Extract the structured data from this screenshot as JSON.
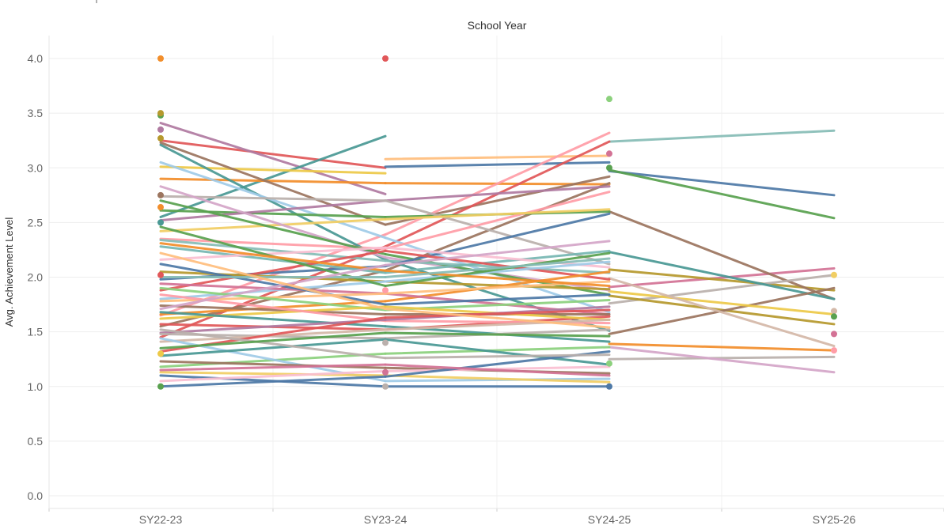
{
  "chart_data": {
    "type": "line",
    "title": "",
    "xlabel": "School Year",
    "ylabel": "Avg. Achievement Level",
    "categories": [
      "SY22-23",
      "SY23-24",
      "SY24-25",
      "SY25-26"
    ],
    "y_ticks": [
      "0.0",
      "0.5",
      "1.0",
      "1.5",
      "2.0",
      "2.5",
      "3.0",
      "3.5",
      "4.0"
    ],
    "ylim": [
      0,
      4.05
    ],
    "grid": true,
    "legend": "none",
    "palette": [
      "#4e79a7",
      "#f28e2b",
      "#e15759",
      "#76b7b2",
      "#59a14f",
      "#edc948",
      "#b07aa1",
      "#ff9da7",
      "#9c755f",
      "#bab0ac",
      "#a0cbe8",
      "#ffbe7d",
      "#8cd17d",
      "#b6992d",
      "#499894",
      "#86bcb6",
      "#d37295",
      "#fabfd2",
      "#d4a6c8",
      "#f1ce63"
    ],
    "series": [
      {
        "color": "#86bcb6",
        "values": [
          null,
          null,
          3.24,
          3.34
        ]
      },
      {
        "color": "#4e79a7",
        "values": [
          null,
          null,
          2.97,
          2.75
        ]
      },
      {
        "color": "#59a14f",
        "values": [
          null,
          null,
          2.98,
          2.54
        ]
      },
      {
        "color": "#d37295",
        "values": [
          null,
          null,
          1.91,
          2.08
        ]
      },
      {
        "color": "#b6992d",
        "values": [
          null,
          null,
          2.07,
          1.88
        ]
      },
      {
        "color": "#9c755f",
        "values": [
          null,
          null,
          2.6,
          1.8
        ]
      },
      {
        "color": "#bab0ac",
        "values": [
          null,
          null,
          1.76,
          2.02
        ]
      },
      {
        "color": "#499894",
        "values": [
          null,
          null,
          2.23,
          1.8
        ]
      },
      {
        "color": "#b6992d",
        "values": [
          null,
          null,
          1.83,
          1.57
        ]
      },
      {
        "color": "#9c755f",
        "values": [
          null,
          null,
          1.48,
          1.9
        ]
      },
      {
        "color": "#edc948",
        "values": [
          null,
          null,
          1.87,
          1.66
        ]
      },
      {
        "color": "#f28e2b",
        "values": [
          null,
          null,
          1.39,
          1.33
        ]
      },
      {
        "color": "#bab0ac",
        "values": [
          null,
          null,
          1.25,
          1.27
        ]
      },
      {
        "color": "#d4a6c8",
        "values": [
          null,
          null,
          1.36,
          1.13
        ]
      },
      {
        "color": "#d4b8a8",
        "values": [
          null,
          null,
          1.99,
          1.37
        ]
      },
      {
        "color": "#e15759",
        "values": [
          3.25,
          3.0,
          null,
          null
        ]
      },
      {
        "color": "#b07aa1",
        "values": [
          3.41,
          2.76,
          null,
          null
        ]
      },
      {
        "color": "#4e79a7",
        "values": [
          null,
          3.01,
          3.05,
          null
        ]
      },
      {
        "color": "#ffbe7d",
        "values": [
          null,
          3.08,
          3.11,
          null
        ]
      },
      {
        "color": "#499894",
        "values": [
          2.55,
          3.29,
          null,
          null
        ]
      },
      {
        "color": "#edc948",
        "values": [
          3.01,
          2.95,
          null,
          null
        ]
      },
      {
        "color": "#f28e2b",
        "values": [
          2.9,
          2.86,
          2.85,
          null
        ]
      },
      {
        "color": "#9c755f",
        "values": [
          3.23,
          2.48,
          2.92,
          null
        ]
      },
      {
        "color": "#ff9da7",
        "values": [
          1.65,
          2.39,
          3.32,
          null
        ]
      },
      {
        "color": "#e15759",
        "values": [
          1.45,
          2.28,
          3.24,
          null
        ]
      },
      {
        "color": "#9c755f",
        "values": [
          1.55,
          2.06,
          2.86,
          null
        ]
      },
      {
        "color": "#499894",
        "values": [
          3.21,
          2.16,
          1.51,
          null
        ]
      },
      {
        "color": "#a0cbe8",
        "values": [
          3.05,
          2.36,
          1.68,
          null
        ]
      },
      {
        "color": "#59a14f",
        "values": [
          2.61,
          2.55,
          2.6,
          null
        ]
      },
      {
        "color": "#b07aa1",
        "values": [
          2.52,
          2.7,
          2.83,
          null
        ]
      },
      {
        "color": "#bab0ac",
        "values": [
          2.74,
          2.7,
          2.12,
          null
        ]
      },
      {
        "color": "#ff9da7",
        "values": [
          2.35,
          2.26,
          2.78,
          null
        ]
      },
      {
        "color": "#f1ce63",
        "values": [
          2.42,
          2.53,
          2.62,
          null
        ]
      },
      {
        "color": "#d4a6c8",
        "values": [
          2.83,
          2.18,
          1.88,
          null
        ]
      },
      {
        "color": "#59a14f",
        "values": [
          2.7,
          2.21,
          1.84,
          null
        ]
      },
      {
        "color": "#86bcb6",
        "values": [
          2.34,
          2.15,
          2.04,
          null
        ]
      },
      {
        "color": "#4e79a7",
        "values": [
          1.98,
          2.1,
          2.58,
          null
        ]
      },
      {
        "color": "#76b7b2",
        "values": [
          2.28,
          2.04,
          2.24,
          null
        ]
      },
      {
        "color": "#fabfd2",
        "values": [
          2.16,
          2.27,
          2.09,
          null
        ]
      },
      {
        "color": "#e15759",
        "values": [
          1.88,
          2.24,
          1.98,
          null
        ]
      },
      {
        "color": "#b6992d",
        "values": [
          2.05,
          1.96,
          1.89,
          null
        ]
      },
      {
        "color": "#a0cbe8",
        "values": [
          1.8,
          1.96,
          2.14,
          null
        ]
      },
      {
        "color": "#f28e2b",
        "values": [
          1.66,
          1.78,
          2.05,
          null
        ]
      },
      {
        "color": "#59a14f",
        "values": [
          2.46,
          1.92,
          2.22,
          null
        ]
      },
      {
        "color": "#d37295",
        "values": [
          1.94,
          1.85,
          1.66,
          null
        ]
      },
      {
        "color": "#4e79a7",
        "values": [
          2.12,
          1.75,
          1.84,
          null
        ]
      },
      {
        "color": "#ffbe7d",
        "values": [
          1.78,
          1.85,
          1.96,
          null
        ]
      },
      {
        "color": "#8cd17d",
        "values": [
          1.9,
          1.7,
          1.79,
          null
        ]
      },
      {
        "color": "#9c755f",
        "values": [
          1.74,
          1.66,
          1.66,
          null
        ]
      },
      {
        "color": "#e15759",
        "values": [
          1.57,
          1.52,
          1.64,
          null
        ]
      },
      {
        "color": "#edc948",
        "values": [
          1.62,
          1.73,
          1.61,
          null
        ]
      },
      {
        "color": "#ff9da7",
        "values": [
          1.84,
          1.6,
          1.58,
          null
        ]
      },
      {
        "color": "#499894",
        "values": [
          1.68,
          1.55,
          1.41,
          null
        ]
      },
      {
        "color": "#b07aa1",
        "values": [
          1.49,
          1.61,
          1.73,
          null
        ]
      },
      {
        "color": "#bab0ac",
        "values": [
          1.48,
          1.44,
          1.52,
          null
        ]
      },
      {
        "color": "#d4b8a8",
        "values": [
          1.41,
          1.52,
          1.61,
          null
        ]
      },
      {
        "color": "#e15759",
        "values": [
          1.32,
          1.63,
          1.7,
          null
        ]
      },
      {
        "color": "#8cd17d",
        "values": [
          1.18,
          1.3,
          1.36,
          null
        ]
      },
      {
        "color": "#a0cbe8",
        "values": [
          1.44,
          1.05,
          1.07,
          null
        ]
      },
      {
        "color": "#4e79a7",
        "values": [
          1.1,
          1.0,
          1.0,
          null
        ]
      },
      {
        "color": "#9c755f",
        "values": [
          1.23,
          1.17,
          1.12,
          null
        ]
      },
      {
        "color": "#f1ce63",
        "values": [
          1.13,
          1.1,
          1.04,
          null
        ]
      },
      {
        "color": "#499894",
        "values": [
          1.28,
          1.43,
          1.2,
          null
        ]
      },
      {
        "color": "#fabfd2",
        "values": [
          1.05,
          1.14,
          1.18,
          null
        ]
      },
      {
        "color": "#4e79a7",
        "values": [
          1.0,
          1.09,
          1.32,
          null
        ]
      },
      {
        "color": "#d37295",
        "values": [
          1.15,
          1.2,
          1.1,
          null
        ]
      },
      {
        "color": "#bab0ac",
        "values": [
          1.52,
          1.26,
          1.29,
          null
        ]
      },
      {
        "color": "#59a14f",
        "values": [
          1.35,
          1.49,
          1.46,
          null
        ]
      },
      {
        "color": "#f28e2b",
        "values": [
          2.31,
          2.06,
          1.92,
          null
        ]
      },
      {
        "color": "#86bcb6",
        "values": [
          2.0,
          2.0,
          2.17,
          null
        ]
      },
      {
        "color": "#d4a6c8",
        "values": [
          1.71,
          2.11,
          2.33,
          null
        ]
      },
      {
        "color": "#ffbe7d",
        "values": [
          2.22,
          1.71,
          1.54,
          null
        ]
      },
      {
        "color": "#f28e2b",
        "values": [
          4.0,
          null,
          null,
          null
        ]
      },
      {
        "color": "#e15759",
        "values": [
          null,
          4.0,
          null,
          null
        ]
      },
      {
        "color": "#8cd17d",
        "values": [
          null,
          null,
          3.63,
          null
        ]
      },
      {
        "color": "#59a14f",
        "values": [
          3.48,
          null,
          null,
          null
        ]
      },
      {
        "color": "#b6992d",
        "values": [
          3.5,
          null,
          null,
          null
        ]
      },
      {
        "color": "#b07aa1",
        "values": [
          3.35,
          null,
          null,
          null
        ]
      },
      {
        "color": "#b6992d",
        "values": [
          3.27,
          null,
          null,
          null
        ]
      },
      {
        "color": "#9c755f",
        "values": [
          2.75,
          null,
          null,
          null
        ]
      },
      {
        "color": "#f28e2b",
        "values": [
          2.64,
          null,
          null,
          null
        ]
      },
      {
        "color": "#499894",
        "values": [
          2.5,
          null,
          null,
          null
        ]
      },
      {
        "color": "#e15759",
        "values": [
          2.02,
          null,
          null,
          null
        ]
      },
      {
        "color": "#59a14f",
        "values": [
          1.0,
          null,
          null,
          null
        ]
      },
      {
        "color": "#edc948",
        "values": [
          1.3,
          null,
          null,
          null
        ]
      },
      {
        "color": "#ff9da7",
        "values": [
          null,
          1.88,
          null,
          null
        ]
      },
      {
        "color": "#bab0ac",
        "values": [
          null,
          1.4,
          null,
          null
        ]
      },
      {
        "color": "#d37295",
        "values": [
          null,
          1.13,
          null,
          null
        ]
      },
      {
        "color": "#bab0ac",
        "values": [
          null,
          1.0,
          null,
          null
        ]
      },
      {
        "color": "#59a14f",
        "values": [
          null,
          null,
          3.0,
          null
        ]
      },
      {
        "color": "#d37295",
        "values": [
          null,
          null,
          3.13,
          null
        ]
      },
      {
        "color": "#4e79a7",
        "values": [
          null,
          null,
          1.0,
          null
        ]
      },
      {
        "color": "#8cd17d",
        "values": [
          null,
          null,
          1.21,
          null
        ]
      },
      {
        "color": "#f1ce63",
        "values": [
          null,
          null,
          null,
          2.02
        ]
      },
      {
        "color": "#d37295",
        "values": [
          null,
          null,
          null,
          1.48
        ]
      },
      {
        "color": "#d4b8a8",
        "values": [
          null,
          null,
          null,
          1.69
        ]
      },
      {
        "color": "#ff9da7",
        "values": [
          null,
          null,
          null,
          1.33
        ]
      },
      {
        "color": "#59a14f",
        "values": [
          null,
          null,
          null,
          1.64
        ]
      }
    ]
  }
}
